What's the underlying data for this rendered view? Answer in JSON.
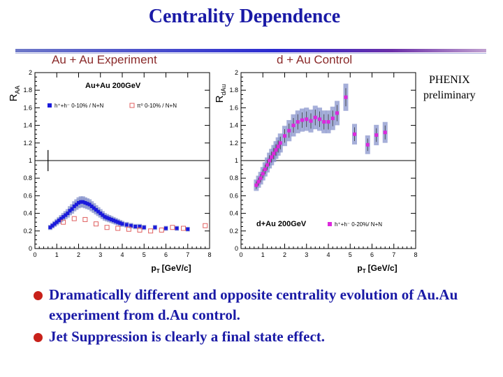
{
  "title": "Centrality Dependence",
  "panel_labels": {
    "left": "Au + Au Experiment",
    "right": "d + Au Control"
  },
  "phenix": {
    "line1": "PHENIX",
    "line2": "preliminary"
  },
  "bullets": [
    "Dramatically different and opposite centrality evolution of Au.Au experiment from d.Au control.",
    "Jet Suppression is clearly a final state effect."
  ],
  "colors": {
    "title": "#1a1aa6",
    "bullet_dot": "#c8211a",
    "auau_marker": "#1a1adc",
    "dau_marker": "#dc28dc",
    "pi0_marker": "#e06060",
    "band": "#8090c8"
  },
  "chart_data": [
    {
      "type": "scatter",
      "ylabel_main": "R",
      "ylabel_sub": "AA",
      "xlabel": "p",
      "xlabel_sub": "T",
      "xlabel_unit": "[GeV/c]",
      "annotation": "Au+Au 200GeV",
      "xlim": [
        0,
        8
      ],
      "ylim": [
        0,
        2
      ],
      "xticks": [
        "0",
        "1",
        "2",
        "3",
        "4",
        "5",
        "6",
        "7",
        "8"
      ],
      "yticks": [
        "0",
        "0.2",
        "0.4",
        "0.6",
        "0.8",
        "1",
        "1.2",
        "1.4",
        "1.6",
        "1.8",
        "2"
      ],
      "legend": [
        "h⁺+h⁻ 0-10% / N+N",
        "π⁰ 0-10% / N+N"
      ],
      "legend_position": "top",
      "reference_line": 1,
      "series": [
        {
          "name": "h⁺+h⁻ 0-10% / N+N",
          "marker": "filled-square",
          "x": [
            0.7,
            0.8,
            0.9,
            1.0,
            1.1,
            1.2,
            1.3,
            1.4,
            1.5,
            1.6,
            1.7,
            1.8,
            1.9,
            2.0,
            2.1,
            2.2,
            2.3,
            2.4,
            2.5,
            2.6,
            2.7,
            2.8,
            2.9,
            3.0,
            3.1,
            3.2,
            3.3,
            3.4,
            3.5,
            3.6,
            3.7,
            3.8,
            3.9,
            4.0,
            4.2,
            4.4,
            4.6,
            4.8,
            5.0,
            5.5,
            6.0,
            6.5,
            7.0
          ],
          "y": [
            0.24,
            0.26,
            0.28,
            0.3,
            0.32,
            0.34,
            0.36,
            0.38,
            0.4,
            0.43,
            0.45,
            0.48,
            0.5,
            0.52,
            0.53,
            0.53,
            0.52,
            0.51,
            0.5,
            0.48,
            0.46,
            0.44,
            0.42,
            0.4,
            0.38,
            0.36,
            0.35,
            0.34,
            0.33,
            0.32,
            0.31,
            0.3,
            0.29,
            0.28,
            0.27,
            0.26,
            0.25,
            0.25,
            0.24,
            0.24,
            0.23,
            0.23,
            0.22
          ]
        },
        {
          "name": "π⁰ 0-10% / N+N",
          "marker": "open-square",
          "x": [
            1.3,
            1.8,
            2.3,
            2.8,
            3.3,
            3.8,
            4.3,
            4.8,
            5.3,
            5.8,
            6.3,
            6.8,
            7.8
          ],
          "y": [
            0.3,
            0.34,
            0.33,
            0.28,
            0.24,
            0.23,
            0.22,
            0.21,
            0.2,
            0.21,
            0.24,
            0.23,
            0.26
          ]
        }
      ]
    },
    {
      "type": "scatter",
      "ylabel_main": "R",
      "ylabel_sub": "dAu",
      "xlabel": "p",
      "xlabel_sub": "T",
      "xlabel_unit": "[GeV/c]",
      "annotation": "d+Au 200GeV",
      "xlim": [
        0,
        8
      ],
      "ylim": [
        0,
        2
      ],
      "xticks": [
        "0",
        "1",
        "2",
        "3",
        "4",
        "5",
        "6",
        "7",
        "8"
      ],
      "yticks": [
        "0",
        "0.2",
        "0.4",
        "0.6",
        "0.8",
        "1",
        "1.2",
        "1.4",
        "1.6",
        "1.8",
        "2"
      ],
      "legend": [
        "h⁺+h⁻ 0-20%/ N+N"
      ],
      "legend_position": "bottom-right",
      "reference_line": 1,
      "series": [
        {
          "name": "h⁺+h⁻ 0-20%/ N+N",
          "marker": "filled-square",
          "x": [
            0.7,
            0.8,
            0.9,
            1.0,
            1.1,
            1.2,
            1.3,
            1.4,
            1.5,
            1.6,
            1.7,
            1.8,
            2.0,
            2.2,
            2.4,
            2.6,
            2.8,
            3.0,
            3.2,
            3.4,
            3.6,
            3.8,
            4.0,
            4.2,
            4.4,
            4.8,
            5.2,
            5.8,
            6.2,
            6.6
          ],
          "y": [
            0.72,
            0.76,
            0.8,
            0.85,
            0.9,
            0.95,
            1.0,
            1.04,
            1.08,
            1.12,
            1.16,
            1.2,
            1.28,
            1.34,
            1.4,
            1.44,
            1.46,
            1.47,
            1.45,
            1.49,
            1.47,
            1.44,
            1.44,
            1.48,
            1.54,
            1.72,
            1.3,
            1.18,
            1.29,
            1.32
          ]
        }
      ]
    }
  ]
}
